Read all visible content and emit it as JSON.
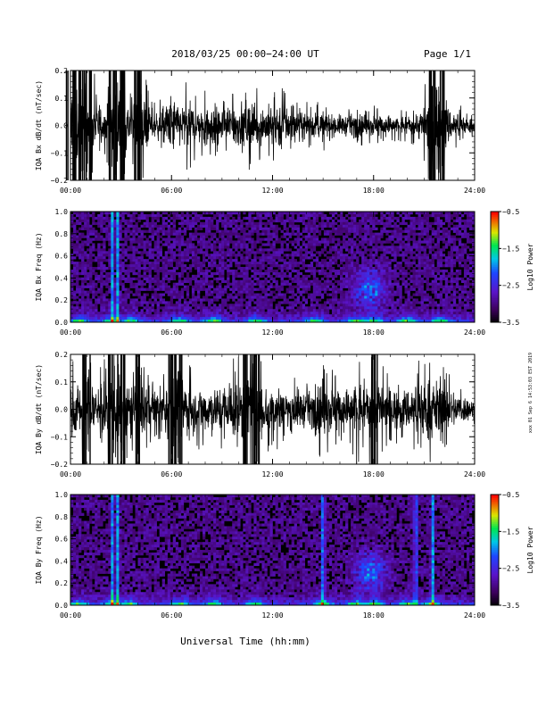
{
  "header": {
    "title": "2018/03/25  00:00−24:00 UT",
    "page": "Page 1/1"
  },
  "footer": {
    "xlabel": "Universal Time (hh:mm)",
    "side_stamp": "xxx 01 Sep 6 14:53:03 EST 2019"
  },
  "chart_data": [
    {
      "type": "line",
      "panel": "IQA Bx dB/dt",
      "ylabel": "IQA Bx dB/dt (nT/sec)",
      "xlim": [
        0,
        24
      ],
      "ylim": [
        -0.2,
        0.2
      ],
      "yticks": [
        "0.2",
        "0.1",
        "0.0",
        "−0.1",
        "−0.2"
      ],
      "xticks": [
        "00:00",
        "06:00",
        "12:00",
        "18:00",
        "24:00"
      ],
      "envelope": {
        "x_hours": [
          0,
          0.5,
          1,
          1.5,
          2,
          2.5,
          3,
          3.5,
          4,
          4.5,
          5,
          5.5,
          6,
          6.5,
          7,
          7.5,
          8,
          8.5,
          9,
          9.5,
          10,
          10.5,
          11,
          11.5,
          12,
          12.5,
          13,
          13.5,
          14,
          14.5,
          15,
          15.5,
          16,
          16.5,
          17,
          17.5,
          18,
          18.5,
          19,
          19.5,
          20,
          20.5,
          21,
          21.5,
          22,
          22.5,
          23,
          23.5,
          24
        ],
        "amplitude": [
          0.22,
          0.2,
          0.22,
          0.12,
          0.08,
          0.22,
          0.22,
          0.1,
          0.22,
          0.12,
          0.06,
          0.08,
          0.15,
          0.1,
          0.12,
          0.08,
          0.12,
          0.1,
          0.08,
          0.12,
          0.1,
          0.12,
          0.1,
          0.09,
          0.1,
          0.12,
          0.08,
          0.06,
          0.07,
          0.06,
          0.07,
          0.05,
          0.05,
          0.05,
          0.06,
          0.05,
          0.06,
          0.05,
          0.05,
          0.04,
          0.05,
          0.05,
          0.1,
          0.22,
          0.22,
          0.08,
          0.06,
          0.04,
          0.03
        ]
      }
    },
    {
      "type": "heatmap",
      "panel": "IQA Bx Freq",
      "ylabel": "IQA Bx Freq (Hz)",
      "xlim": [
        0,
        24
      ],
      "ylim": [
        0,
        1.0
      ],
      "yticks": [
        "1.0",
        "0.8",
        "0.6",
        "0.4",
        "0.2",
        "0.0"
      ],
      "xticks": [
        "00:00",
        "06:00",
        "12:00",
        "18:00",
        "24:00"
      ],
      "colorbar": {
        "label": "Log10 Power",
        "ticks": [
          "−0.5",
          "−1.5",
          "−2.5",
          "−3.5"
        ],
        "range": [
          -3.5,
          -0.5
        ]
      },
      "low_freq_activity_hours": [
        0.5,
        2.5,
        3.5,
        6.5,
        8.5,
        11,
        14.5,
        17,
        18,
        20,
        22
      ],
      "vertical_streaks_hours": [
        2.5,
        2.8
      ],
      "feature": {
        "center_hours": 17.8,
        "freq_range_hz": [
          0.15,
          0.45
        ]
      }
    },
    {
      "type": "line",
      "panel": "IQA By dB/dt",
      "ylabel": "IQA By dB/dt (nT/sec)",
      "xlim": [
        0,
        24
      ],
      "ylim": [
        -0.2,
        0.2
      ],
      "yticks": [
        "0.2",
        "0.1",
        "0.0",
        "−0.1",
        "−0.2"
      ],
      "xticks": [
        "00:00",
        "06:00",
        "12:00",
        "18:00",
        "24:00"
      ],
      "envelope": {
        "x_hours": [
          0,
          0.5,
          1,
          1.5,
          2,
          2.5,
          3,
          3.5,
          4,
          4.5,
          5,
          5.5,
          6,
          6.5,
          7,
          7.5,
          8,
          8.5,
          9,
          9.5,
          10,
          10.5,
          11,
          11.5,
          12,
          12.5,
          13,
          13.5,
          14,
          14.5,
          15,
          15.5,
          16,
          16.5,
          17,
          17.5,
          18,
          18.5,
          19,
          19.5,
          20,
          20.5,
          21,
          21.5,
          22,
          22.5,
          23,
          23.5,
          24
        ],
        "amplitude": [
          0.15,
          0.12,
          0.2,
          0.12,
          0.18,
          0.22,
          0.22,
          0.1,
          0.2,
          0.12,
          0.08,
          0.12,
          0.2,
          0.22,
          0.12,
          0.1,
          0.12,
          0.1,
          0.12,
          0.15,
          0.15,
          0.22,
          0.22,
          0.12,
          0.1,
          0.12,
          0.08,
          0.1,
          0.08,
          0.09,
          0.15,
          0.12,
          0.1,
          0.1,
          0.15,
          0.1,
          0.2,
          0.12,
          0.1,
          0.09,
          0.1,
          0.12,
          0.15,
          0.15,
          0.12,
          0.1,
          0.08,
          0.06,
          0.04
        ]
      }
    },
    {
      "type": "heatmap",
      "panel": "IQA By Freq",
      "ylabel": "IQA By Freq (Hz)",
      "xlim": [
        0,
        24
      ],
      "ylim": [
        0,
        1.0
      ],
      "yticks": [
        "1.0",
        "0.8",
        "0.6",
        "0.4",
        "0.2",
        "0.0"
      ],
      "xticks": [
        "00:00",
        "06:00",
        "12:00",
        "18:00",
        "24:00"
      ],
      "colorbar": {
        "label": "Log10 Power",
        "ticks": [
          "−0.5",
          "−1.5",
          "−2.5",
          "−3.5"
        ],
        "range": [
          -3.5,
          -0.5
        ]
      },
      "low_freq_activity_hours": [
        0.5,
        2.5,
        3.5,
        6.5,
        8.5,
        11,
        15,
        17,
        18,
        20,
        21.5
      ],
      "vertical_streaks_hours": [
        2.5,
        2.8,
        15,
        20.5,
        21.5
      ],
      "feature": {
        "center_hours": 17.8,
        "freq_range_hz": [
          0.15,
          0.45
        ]
      }
    }
  ]
}
